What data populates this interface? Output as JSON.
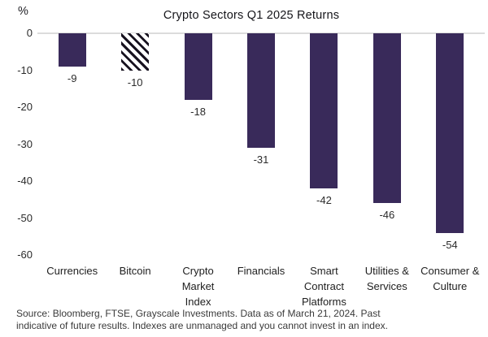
{
  "chart_data": {
    "type": "bar",
    "title": "Crypto Sectors Q1 2025 Returns",
    "categories": [
      "Currencies",
      "Bitcoin",
      "Crypto Market Index",
      "Financials",
      "Smart Contract Platforms",
      "Utilities & Services",
      "Consumer & Culture"
    ],
    "values": [
      -9,
      -10,
      -18,
      -31,
      -42,
      -46,
      -54
    ],
    "bar_styles": [
      "solid",
      "hatched",
      "solid",
      "solid",
      "solid",
      "solid",
      "solid"
    ],
    "xlabel": "",
    "ylabel": "%",
    "yticks": [
      0,
      -10,
      -20,
      -30,
      -40,
      -50,
      -60
    ],
    "ylim": [
      -60,
      0
    ],
    "grid": false,
    "legend": false,
    "data_labels_shown": true,
    "bar_color": "#392a5a",
    "hatch_stripe_color": "#17121f",
    "hatch_background_color": "#ffffff",
    "axis_line_color": "#dcdcdc",
    "text_color": "#2b2b2b"
  },
  "source": {
    "lines": [
      "Source: Bloomberg, FTSE, Grayscale Investments. Data as of March 21, 2024. Past",
      "indicative of future results. Indexes are unmanaged and you cannot invest in an index."
    ]
  }
}
